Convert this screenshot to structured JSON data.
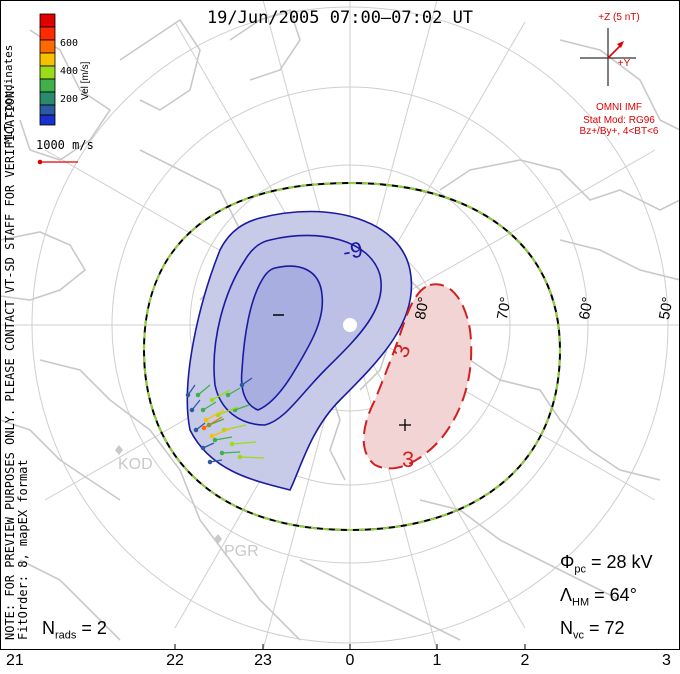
{
  "title": "19/Jun/2005 07:00–07:02 UT",
  "velocity_legend": {
    "label": "Vel [m/s]",
    "ticks": [
      "600",
      "400",
      "200"
    ],
    "colors": [
      "#e00000",
      "#ff6a00",
      "#f5c000",
      "#9cdb1a",
      "#3fb04a",
      "#2a8a6e",
      "#2c5aa0",
      "#1a2fd0"
    ]
  },
  "vector_scale": "1000 m/s",
  "coord_note": "MLT coordinates",
  "preview_note": "NOTE: FOR PREVIEW PURPOSES ONLY. PLEASE CONTACT VT-SD STAFF FOR VERIFICATION.",
  "fit_note": "FitOrder: 8, mapEX format",
  "imf": {
    "z_label": "+Z (5 nT)",
    "y_label": "+Y",
    "source": "OMNI IMF",
    "model": "Stat Mod: RG96",
    "condition": "Bz+/By+, 4<BT<6"
  },
  "stations": [
    "KOD",
    "PGR"
  ],
  "latitude_labels": [
    "80°",
    "70°",
    "60°",
    "50°"
  ],
  "mlt_labels": [
    "21",
    "22",
    "23",
    "0",
    "1",
    "2",
    "3"
  ],
  "contours": {
    "negative_label": "-9",
    "positive_label_1": "3",
    "positive_label_2": "3",
    "min_marker": "–",
    "max_marker": "+"
  },
  "stats": {
    "phi_symbol": "Φ",
    "phi_sub": "pc",
    "phi_value": "= 28 kV",
    "lambda_symbol": "Λ",
    "lambda_sub": "HM",
    "lambda_value": "= 64°",
    "nvc_symbol": "N",
    "nvc_sub": "vc",
    "nvc_value": "= 72",
    "nrads_symbol": "N",
    "nrads_sub": "rads",
    "nrads_value": "= 2"
  },
  "colors": {
    "negative_fill": "#c8cbe8",
    "negative_core": "#a9aee0",
    "negative_line": "#1a1aa0",
    "positive_fill": "#f3d4d4",
    "positive_line": "#d02020",
    "boundary_green": "#8ecf3a",
    "coast": "#c9c9c9",
    "grid": "#cfcfcf"
  }
}
